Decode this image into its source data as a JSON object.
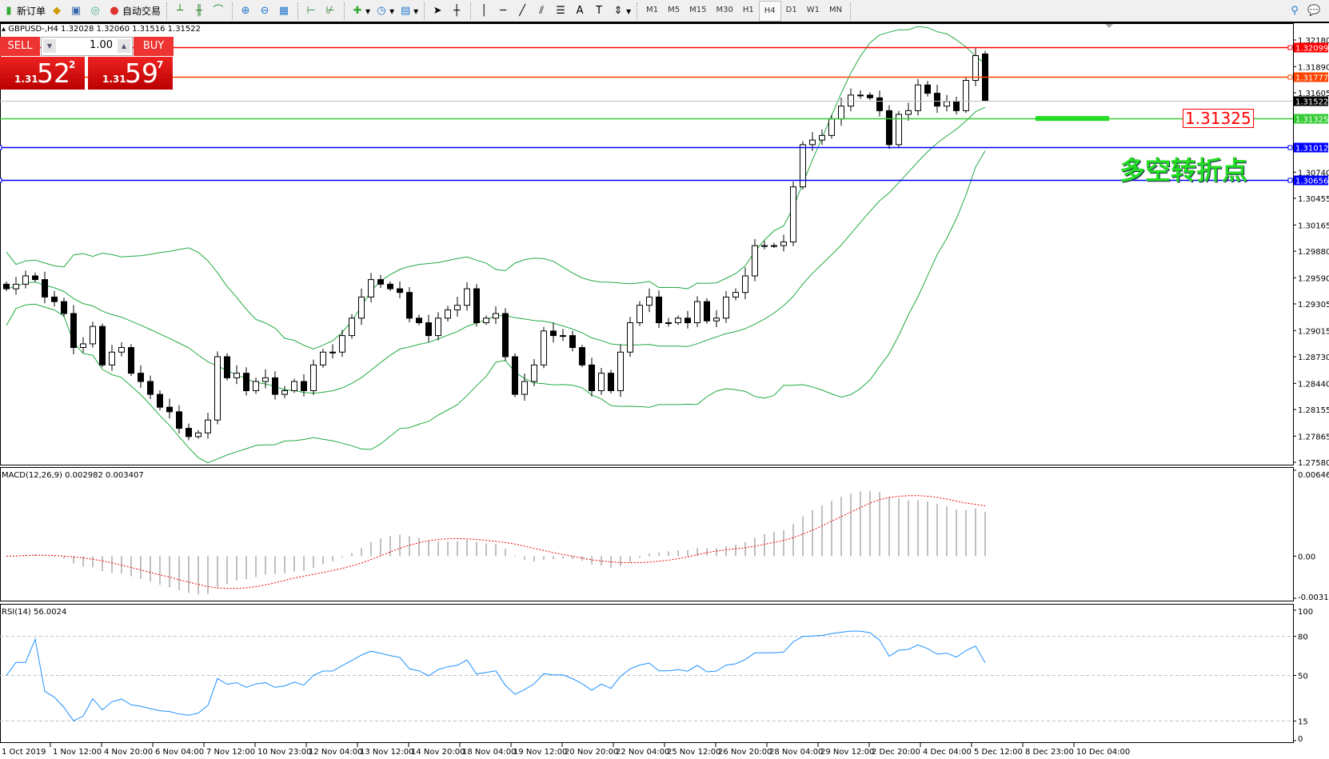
{
  "toolbar": {
    "buttons": [
      {
        "label": "新订单",
        "icon": "new-order-icon"
      },
      {
        "label": "",
        "icon": "market-watch-icon"
      },
      {
        "label": "",
        "icon": "navigator-icon"
      },
      {
        "label": "",
        "icon": "signal-icon"
      },
      {
        "label": "自动交易",
        "icon": "auto-trading-icon"
      }
    ],
    "tools": [
      "bar-chart-icon",
      "candlestick-icon",
      "line-chart-icon",
      "zoom-in-icon",
      "zoom-out-icon",
      "tile-windows-icon",
      "chart-shift-icon",
      "autoscroll-icon",
      "indicators-icon",
      "periods-icon",
      "templates-icon",
      "cursor-icon",
      "crosshair-icon",
      "vertical-line-icon",
      "horizontal-line-icon",
      "trendline-icon",
      "fibonacci-icon",
      "channel-icon",
      "text-icon",
      "text-label-icon",
      "arrows-icon"
    ],
    "timeframes": [
      "M1",
      "M5",
      "M15",
      "M30",
      "H1",
      "H4",
      "D1",
      "W1",
      "MN"
    ],
    "active_timeframe": "H4",
    "right_icons": [
      "search-icon",
      "chat-icon"
    ]
  },
  "chart": {
    "header": "GBPUSD-,H4  1.32028 1.32060 1.31516 1.31522",
    "trade_panel": {
      "sell_label": "SELL",
      "buy_label": "BUY",
      "lots": "1.00",
      "sell_price": {
        "big": "1.31",
        "pips": "52",
        "frac": "2"
      },
      "buy_price": {
        "big": "1.31",
        "pips": "59",
        "frac": "7"
      }
    },
    "annotation_price": "1.31325",
    "annotation_text": "多空转折点",
    "colors": {
      "up": "#ffffff",
      "down": "#000000",
      "bands": "#22aa44",
      "macd_hist": "#c0c0c0",
      "macd_signal": "#ee0000",
      "rsi": "#1e90ff"
    }
  },
  "chart_data": {
    "type": "candlestick",
    "symbol": "GBPUSD-",
    "timeframe": "H4",
    "ylim": [
      1.2758,
      1.3218
    ],
    "y_ticks": [
      "1.32180",
      "1.31890",
      "1.31605",
      "1.30740",
      "1.30455",
      "1.30165",
      "1.29880",
      "1.29590",
      "1.29305",
      "1.29015",
      "1.28730",
      "1.28440",
      "1.28155",
      "1.27865",
      "1.27580"
    ],
    "x_ticks": [
      "1 Oct 2019",
      "1 Nov 12:00",
      "4 Nov 20:00",
      "6 Nov 04:00",
      "7 Nov 12:00",
      "10 Nov 23:00",
      "12 Nov 04:00",
      "13 Nov 12:00",
      "14 Nov 20:00",
      "18 Nov 04:00",
      "19 Nov 12:00",
      "20 Nov 20:00",
      "22 Nov 04:00",
      "25 Nov 12:00",
      "26 Nov 20:00",
      "28 Nov 04:00",
      "29 Nov 12:00",
      "2 Dec 20:00",
      "4 Dec 04:00",
      "5 Dec 12:00",
      "8 Dec 23:00",
      "10 Dec 04:00"
    ],
    "closes": [
      1.2947,
      1.2952,
      1.2961,
      1.2957,
      1.2938,
      1.2933,
      1.292,
      1.2883,
      1.2887,
      1.2906,
      1.2864,
      1.2878,
      1.2883,
      1.2855,
      1.2846,
      1.2832,
      1.2818,
      1.2813,
      1.2795,
      1.2786,
      1.279,
      1.2804,
      1.2873,
      1.285,
      1.2855,
      1.2836,
      1.2846,
      1.285,
      1.2832,
      1.2836,
      1.2846,
      1.2836,
      1.2864,
      1.2878,
      1.2878,
      1.2896,
      1.2915,
      1.2938,
      1.2957,
      1.2952,
      1.2947,
      1.2943,
      1.2915,
      1.291,
      1.2896,
      1.2915,
      1.2924,
      1.2929,
      1.2947,
      1.291,
      1.2915,
      1.292,
      1.2873,
      1.2832,
      1.2846,
      1.2864,
      1.2901,
      1.2896,
      1.2896,
      1.2883,
      1.2864,
      1.2836,
      1.2855,
      1.2836,
      1.2878,
      1.291,
      1.2929,
      1.2938,
      1.291,
      1.291,
      1.2915,
      1.291,
      1.2933,
      1.2912,
      1.2915,
      1.2938,
      1.2943,
      1.2961,
      1.2994,
      1.2994,
      1.2994,
      1.2998,
      1.3058,
      1.3104,
      1.3109,
      1.3114,
      1.3132,
      1.3146,
      1.3158,
      1.3158,
      1.3155,
      1.3141,
      1.3104,
      1.3137,
      1.3141,
      1.3169,
      1.316,
      1.3146,
      1.3151,
      1.3141,
      1.3174,
      1.3201,
      1.31522
    ],
    "last_bar": {
      "open": 1.32028,
      "high": 1.3206,
      "low": 1.31516,
      "close": 1.31522
    },
    "indicators": {
      "bollinger": {
        "period": 20,
        "deviation": 2
      },
      "macd": {
        "label": "MACD(12,26,9) 0.002982 0.003407",
        "params": [
          12,
          26,
          9
        ],
        "ylim": [
          -0.003171,
          0.006468
        ],
        "y_ticks": [
          "0.006468",
          "0.00",
          "-0.003171"
        ]
      },
      "rsi": {
        "label": "RSI(14) 56.0024",
        "period": 14,
        "levels": [
          80,
          50,
          15
        ],
        "y_ticks": [
          "100",
          "80",
          "50",
          "15",
          "0"
        ]
      }
    },
    "hlines": [
      {
        "price": "1.32099",
        "color": "#ff0000"
      },
      {
        "price": "1.31777",
        "color": "#ff4400"
      },
      {
        "price": "1.31522",
        "color": "#000000",
        "bid": true
      },
      {
        "price": "1.31325",
        "color": "#33cc33"
      },
      {
        "price": "1.31012",
        "color": "#0000ff"
      },
      {
        "price": "1.30656",
        "color": "#0000ff"
      }
    ]
  }
}
